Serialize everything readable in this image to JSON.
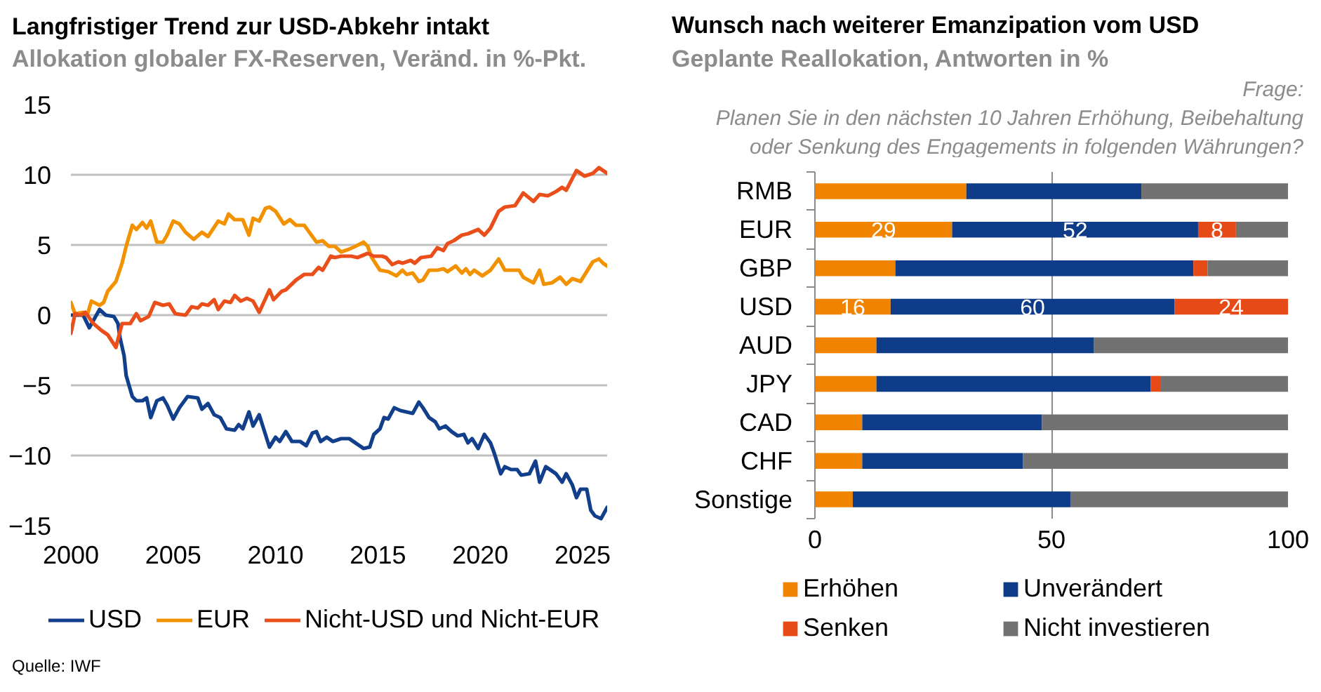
{
  "chart_data": [
    {
      "type": "line",
      "title": "Langfristiger Trend zur USD-Abkehr intakt",
      "subtitle": "Allokation globaler FX-Reserven, Veränd. in %-Pkt.",
      "xlim": [
        2000,
        2026.2
      ],
      "xticks": [
        2000,
        2005,
        2010,
        2015,
        2020,
        2025
      ],
      "ylim": [
        -15,
        15
      ],
      "yticks": [
        -15,
        -10,
        -5,
        0,
        5,
        10,
        15
      ],
      "grid": "y",
      "legend": "bottom",
      "annotations": [
        "Quelle: IWF"
      ],
      "series": [
        {
          "name": "USD",
          "color": "#123f8c",
          "x": [
            2000.0,
            2000.6,
            2000.9,
            2001.4,
            2001.7,
            2002.1,
            2002.3,
            2002.4,
            2002.6,
            2002.7,
            2003.0,
            2003.2,
            2003.5,
            2003.7,
            2003.9,
            2004.2,
            2004.5,
            2004.7,
            2005.0,
            2005.3,
            2005.7,
            2006.2,
            2006.4,
            2006.7,
            2007.0,
            2007.3,
            2007.6,
            2008.0,
            2008.2,
            2008.4,
            2008.7,
            2008.9,
            2009.2,
            2009.7,
            2010.0,
            2010.2,
            2010.5,
            2010.8,
            2011.2,
            2011.5,
            2011.8,
            2012.0,
            2012.2,
            2012.5,
            2012.8,
            2013.2,
            2013.6,
            2013.9,
            2014.3,
            2014.6,
            2014.8,
            2015.1,
            2015.3,
            2015.5,
            2015.8,
            2016.1,
            2016.4,
            2016.7,
            2017.0,
            2017.2,
            2017.5,
            2017.8,
            2018.0,
            2018.3,
            2018.6,
            2018.9,
            2019.2,
            2019.4,
            2019.6,
            2019.9,
            2020.2,
            2020.5,
            2020.7,
            2021.0,
            2021.2,
            2021.5,
            2021.8,
            2022.0,
            2022.4,
            2022.7,
            2022.9,
            2023.2,
            2023.5,
            2023.7,
            2024.0,
            2024.2,
            2024.5,
            2024.7,
            2024.9,
            2025.2,
            2025.4,
            2025.6,
            2025.9,
            2026.2
          ],
          "values": [
            0,
            0,
            -0.9,
            0.4,
            0,
            -0.1,
            -0.6,
            -1.6,
            -2.9,
            -4.3,
            -5.8,
            -6.1,
            -6.1,
            -5.9,
            -7.3,
            -6.1,
            -5.9,
            -6.4,
            -7.4,
            -6.6,
            -5.8,
            -5.9,
            -6.7,
            -6.3,
            -7.1,
            -7.3,
            -8.1,
            -8.2,
            -7.8,
            -8.1,
            -6.9,
            -7.9,
            -7.1,
            -9.4,
            -8.7,
            -9.0,
            -8.3,
            -9.0,
            -9.0,
            -9.3,
            -8.4,
            -8.3,
            -9.0,
            -8.7,
            -9.0,
            -8.8,
            -8.8,
            -9.1,
            -9.5,
            -9.4,
            -8.5,
            -8.1,
            -7.3,
            -7.4,
            -6.6,
            -6.8,
            -6.9,
            -7.0,
            -6.2,
            -6.6,
            -7.3,
            -7.6,
            -8.1,
            -7.9,
            -8.3,
            -8.6,
            -8.5,
            -9.1,
            -8.8,
            -9.5,
            -8.5,
            -9.1,
            -9.9,
            -11.3,
            -10.8,
            -11.0,
            -11.0,
            -11.4,
            -11.3,
            -10.4,
            -11.9,
            -10.8,
            -11.1,
            -11.3,
            -11.9,
            -11.3,
            -12.1,
            -13.0,
            -12.4,
            -12.4,
            -13.9,
            -14.3,
            -14.5,
            -13.7
          ]
        },
        {
          "name": "EUR",
          "color": "#f39200",
          "x": [
            2000.0,
            2000.2,
            2000.6,
            2000.8,
            2001.0,
            2001.4,
            2001.6,
            2001.8,
            2002.2,
            2002.5,
            2002.7,
            2002.9,
            2003.0,
            2003.2,
            2003.5,
            2003.7,
            2003.9,
            2004.2,
            2004.5,
            2004.7,
            2005.0,
            2005.3,
            2005.6,
            2006.0,
            2006.4,
            2006.7,
            2007.2,
            2007.5,
            2007.7,
            2008.0,
            2008.4,
            2008.7,
            2008.9,
            2009.2,
            2009.5,
            2009.7,
            2010.0,
            2010.4,
            2010.7,
            2011.0,
            2011.4,
            2012.0,
            2012.3,
            2012.6,
            2012.9,
            2013.2,
            2013.6,
            2013.9,
            2014.3,
            2014.5,
            2014.7,
            2015.1,
            2015.5,
            2015.9,
            2016.2,
            2016.4,
            2016.7,
            2017.0,
            2017.2,
            2017.5,
            2017.9,
            2018.2,
            2018.4,
            2018.8,
            2019.1,
            2019.3,
            2019.5,
            2019.7,
            2020.1,
            2020.5,
            2020.9,
            2021.2,
            2021.6,
            2021.9,
            2022.1,
            2022.6,
            2022.9,
            2023.1,
            2023.5,
            2023.9,
            2024.2,
            2024.5,
            2024.9,
            2025.2,
            2025.5,
            2025.8,
            2026.0,
            2026.2
          ],
          "values": [
            0.9,
            0.1,
            0.2,
            0,
            1.0,
            0.7,
            0.9,
            1.7,
            2.4,
            3.7,
            4.9,
            5.9,
            6.4,
            6.1,
            6.6,
            6.2,
            6.7,
            5.2,
            5.2,
            5.7,
            6.7,
            6.5,
            5.9,
            5.4,
            5.9,
            5.6,
            6.7,
            6.5,
            7.2,
            6.8,
            6.8,
            5.7,
            6.9,
            6.7,
            7.6,
            7.7,
            7.4,
            6.5,
            6.8,
            6.4,
            6.4,
            5.2,
            5.3,
            4.9,
            4.9,
            4.5,
            4.7,
            4.9,
            5.2,
            4.9,
            4.1,
            3.2,
            3.1,
            2.8,
            3.2,
            2.9,
            3.0,
            2.4,
            2.5,
            3.2,
            3.2,
            3.3,
            3.1,
            3.5,
            3.0,
            3.3,
            2.9,
            3.2,
            2.8,
            3.2,
            4.0,
            3.2,
            3.2,
            3.2,
            2.7,
            2.3,
            3.2,
            2.2,
            2.3,
            2.7,
            2.2,
            2.6,
            2.4,
            3.1,
            3.8,
            4.0,
            3.7,
            3.5
          ]
        },
        {
          "name": "Nicht-USD und Nicht-EUR",
          "color": "#e94e1b",
          "x": [
            2000.0,
            2000.2,
            2000.5,
            2000.7,
            2001.1,
            2001.5,
            2001.8,
            2002.2,
            2002.5,
            2002.9,
            2003.2,
            2003.4,
            2003.8,
            2004.1,
            2004.5,
            2004.8,
            2005.1,
            2005.6,
            2005.9,
            2006.2,
            2006.4,
            2006.7,
            2007.0,
            2007.2,
            2007.5,
            2007.8,
            2008.0,
            2008.3,
            2008.6,
            2008.9,
            2009.2,
            2009.7,
            2009.9,
            2010.3,
            2010.5,
            2011.0,
            2011.4,
            2011.8,
            2012.1,
            2012.3,
            2012.7,
            2012.9,
            2013.2,
            2013.7,
            2014.0,
            2014.5,
            2014.8,
            2015.2,
            2015.4,
            2015.7,
            2016.0,
            2016.2,
            2016.6,
            2016.8,
            2017.1,
            2017.6,
            2017.9,
            2018.2,
            2018.4,
            2018.7,
            2019.1,
            2019.4,
            2019.9,
            2020.2,
            2020.5,
            2020.9,
            2021.2,
            2021.7,
            2022.1,
            2022.6,
            2022.9,
            2023.3,
            2023.7,
            2024.0,
            2024.2,
            2024.7,
            2025.1,
            2025.5,
            2025.8,
            2026.2
          ],
          "values": [
            -1.3,
            0.1,
            0,
            0.2,
            -0.6,
            -1.1,
            -1.4,
            -2.3,
            -0.6,
            -0.6,
            0.1,
            -0.4,
            -0.1,
            0.9,
            0.7,
            0.8,
            0.1,
            0.0,
            0.6,
            0.5,
            0.8,
            0.7,
            1.1,
            0.4,
            1.0,
            0.9,
            1.4,
            1.0,
            1.2,
            1.0,
            0.2,
            1.8,
            1.1,
            1.7,
            1.8,
            2.5,
            2.9,
            2.9,
            3.4,
            3.2,
            4.2,
            4.1,
            4.2,
            4.2,
            4.1,
            4.4,
            4.2,
            4.2,
            4.1,
            3.6,
            3.8,
            3.7,
            3.9,
            3.7,
            4.1,
            4.2,
            4.8,
            4.6,
            5.1,
            5.3,
            5.7,
            5.8,
            6.1,
            5.7,
            6.2,
            7.4,
            7.7,
            7.8,
            8.7,
            8.1,
            8.6,
            8.5,
            8.8,
            9.1,
            8.9,
            10.3,
            9.9,
            10.1,
            10.5,
            10.1
          ]
        }
      ]
    },
    {
      "type": "bar",
      "orientation": "horizontal",
      "stacked": true,
      "title": "Wunsch nach weiterer Emanzipation vom USD",
      "subtitle": "Geplante Reallokation, Antworten in %",
      "annotations": [
        "Frage:\nPlanen Sie in den nächsten 10 Jahren Erhöhung, Beibehaltung\noder Senkung des Engagements in folgenden Währungen?"
      ],
      "categories": [
        "RMB",
        "EUR",
        "GBP",
        "USD",
        "AUD",
        "JPY",
        "CAD",
        "CHF",
        "Sonstige"
      ],
      "xlim": [
        0,
        100
      ],
      "xticks": [
        0,
        50,
        100
      ],
      "grid": "x",
      "legend": "bottom",
      "series": [
        {
          "name": "Erhöhen",
          "color": "#f08300",
          "values": [
            32,
            29,
            17,
            16,
            13,
            13,
            10,
            10,
            8
          ],
          "value_labels": [
            null,
            "29",
            null,
            "16",
            null,
            null,
            null,
            null,
            null
          ]
        },
        {
          "name": "Unverändert",
          "color": "#0f3c88",
          "values": [
            37,
            52,
            63,
            60,
            46,
            58,
            38,
            34,
            46
          ],
          "value_labels": [
            null,
            "52",
            null,
            "60",
            null,
            null,
            null,
            null,
            null
          ]
        },
        {
          "name": "Senken",
          "color": "#e54a17",
          "values": [
            0,
            8,
            3,
            24,
            0,
            2,
            0,
            0,
            0
          ],
          "value_labels": [
            null,
            "8",
            null,
            "24",
            null,
            null,
            null,
            null,
            null
          ]
        },
        {
          "name": "Nicht investieren",
          "color": "#727272",
          "values": [
            31,
            11,
            17,
            0,
            41,
            27,
            52,
            56,
            46
          ]
        }
      ]
    }
  ]
}
